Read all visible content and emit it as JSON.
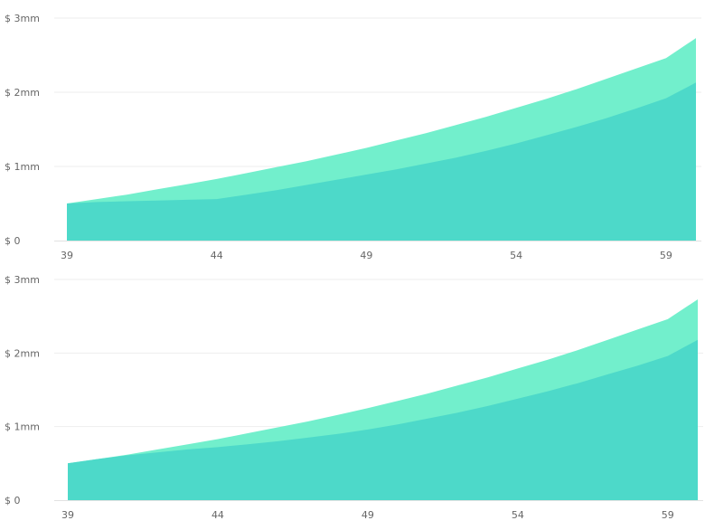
{
  "chart_data": [
    {
      "type": "area",
      "stacked": false,
      "x": [
        39,
        40,
        41,
        42,
        43,
        44,
        45,
        46,
        47,
        48,
        49,
        50,
        51,
        52,
        53,
        54,
        55,
        56,
        57,
        58,
        59,
        60
      ],
      "xticks": [
        "39",
        "44",
        "49",
        "54",
        "59"
      ],
      "yticks": [
        "$ 0",
        "$ 1mm",
        "$ 2mm",
        "$ 3mm"
      ],
      "xlim": [
        39,
        60
      ],
      "ylim": [
        0,
        3
      ],
      "grid": true,
      "legend": "none",
      "series": [
        {
          "color": "#72efcc",
          "values": [
            0.5,
            0.56,
            0.62,
            0.69,
            0.76,
            0.83,
            0.91,
            0.99,
            1.07,
            1.16,
            1.25,
            1.35,
            1.45,
            1.56,
            1.67,
            1.79,
            1.91,
            2.04,
            2.18,
            2.32,
            2.46,
            2.73
          ]
        },
        {
          "color": "#4dd9c9",
          "values": [
            0.5,
            0.52,
            0.53,
            0.54,
            0.55,
            0.56,
            0.62,
            0.68,
            0.75,
            0.82,
            0.89,
            0.96,
            1.04,
            1.12,
            1.21,
            1.31,
            1.42,
            1.53,
            1.65,
            1.78,
            1.92,
            2.13
          ]
        }
      ]
    },
    {
      "type": "area",
      "stacked": false,
      "x": [
        39,
        40,
        41,
        42,
        43,
        44,
        45,
        46,
        47,
        48,
        49,
        50,
        51,
        52,
        53,
        54,
        55,
        56,
        57,
        58,
        59,
        60
      ],
      "xticks": [
        "39",
        "44",
        "49",
        "54",
        "59"
      ],
      "yticks": [
        "$ 0",
        "$ 1mm",
        "$ 2mm",
        "$ 3mm"
      ],
      "xlim": [
        39,
        60
      ],
      "ylim": [
        0,
        3
      ],
      "grid": true,
      "legend": "none",
      "series": [
        {
          "color": "#72efcc",
          "values": [
            0.5,
            0.56,
            0.62,
            0.69,
            0.76,
            0.83,
            0.91,
            0.99,
            1.07,
            1.16,
            1.25,
            1.35,
            1.45,
            1.56,
            1.67,
            1.79,
            1.91,
            2.04,
            2.18,
            2.32,
            2.46,
            2.73
          ]
        },
        {
          "color": "#4dd9c9",
          "values": [
            0.5,
            0.56,
            0.61,
            0.65,
            0.69,
            0.72,
            0.76,
            0.8,
            0.85,
            0.9,
            0.96,
            1.03,
            1.11,
            1.19,
            1.28,
            1.38,
            1.48,
            1.59,
            1.71,
            1.83,
            1.96,
            2.18
          ]
        }
      ]
    }
  ]
}
